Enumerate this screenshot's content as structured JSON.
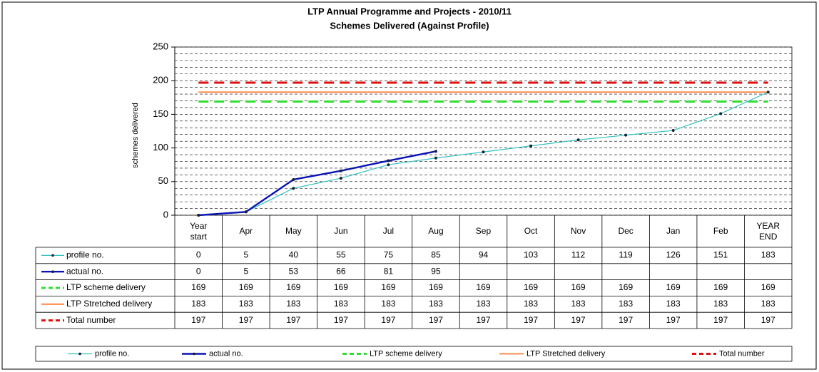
{
  "chart_data": {
    "type": "line",
    "title": "LTP Annual Programme and Projects - 2010/11",
    "subtitle": "Schemes Delivered (Against Profile)",
    "y_label": "schemes delivered",
    "categories": [
      "Year start",
      "Apr",
      "May",
      "Jun",
      "Jul",
      "Aug",
      "Sep",
      "Oct",
      "Nov",
      "Dec",
      "Jan",
      "Feb",
      "YEAR END"
    ],
    "ylim": [
      0,
      250
    ],
    "yticks": [
      0,
      50,
      100,
      150,
      200,
      250
    ],
    "minor_grid": 10,
    "grid": true,
    "legend": "bottom",
    "series": [
      {
        "name": "profile no.",
        "color": "#33c0c0",
        "width": 1.2,
        "dashed": false,
        "marker": true,
        "values": [
          0,
          5,
          40,
          55,
          75,
          85,
          94,
          103,
          112,
          119,
          126,
          151,
          183
        ]
      },
      {
        "name": "actual no.",
        "color": "#0a14b4",
        "width": 2.4,
        "dashed": false,
        "marker": true,
        "values": [
          0,
          5,
          53,
          66,
          81,
          95,
          null,
          null,
          null,
          null,
          null,
          null,
          null
        ]
      },
      {
        "name": "LTP scheme delivery",
        "color": "#33dd33",
        "width": 3,
        "dashed": true,
        "marker": false,
        "values": [
          169,
          169,
          169,
          169,
          169,
          169,
          169,
          169,
          169,
          169,
          169,
          169,
          169
        ]
      },
      {
        "name": "LTP Stretched delivery",
        "color": "#ff7f33",
        "width": 1.8,
        "dashed": false,
        "marker": false,
        "values": [
          183,
          183,
          183,
          183,
          183,
          183,
          183,
          183,
          183,
          183,
          183,
          183,
          183
        ]
      },
      {
        "name": "Total number",
        "color": "#e01010",
        "width": 3,
        "dashed": true,
        "marker": false,
        "values": [
          197,
          197,
          197,
          197,
          197,
          197,
          197,
          197,
          197,
          197,
          197,
          197,
          197
        ]
      }
    ]
  }
}
